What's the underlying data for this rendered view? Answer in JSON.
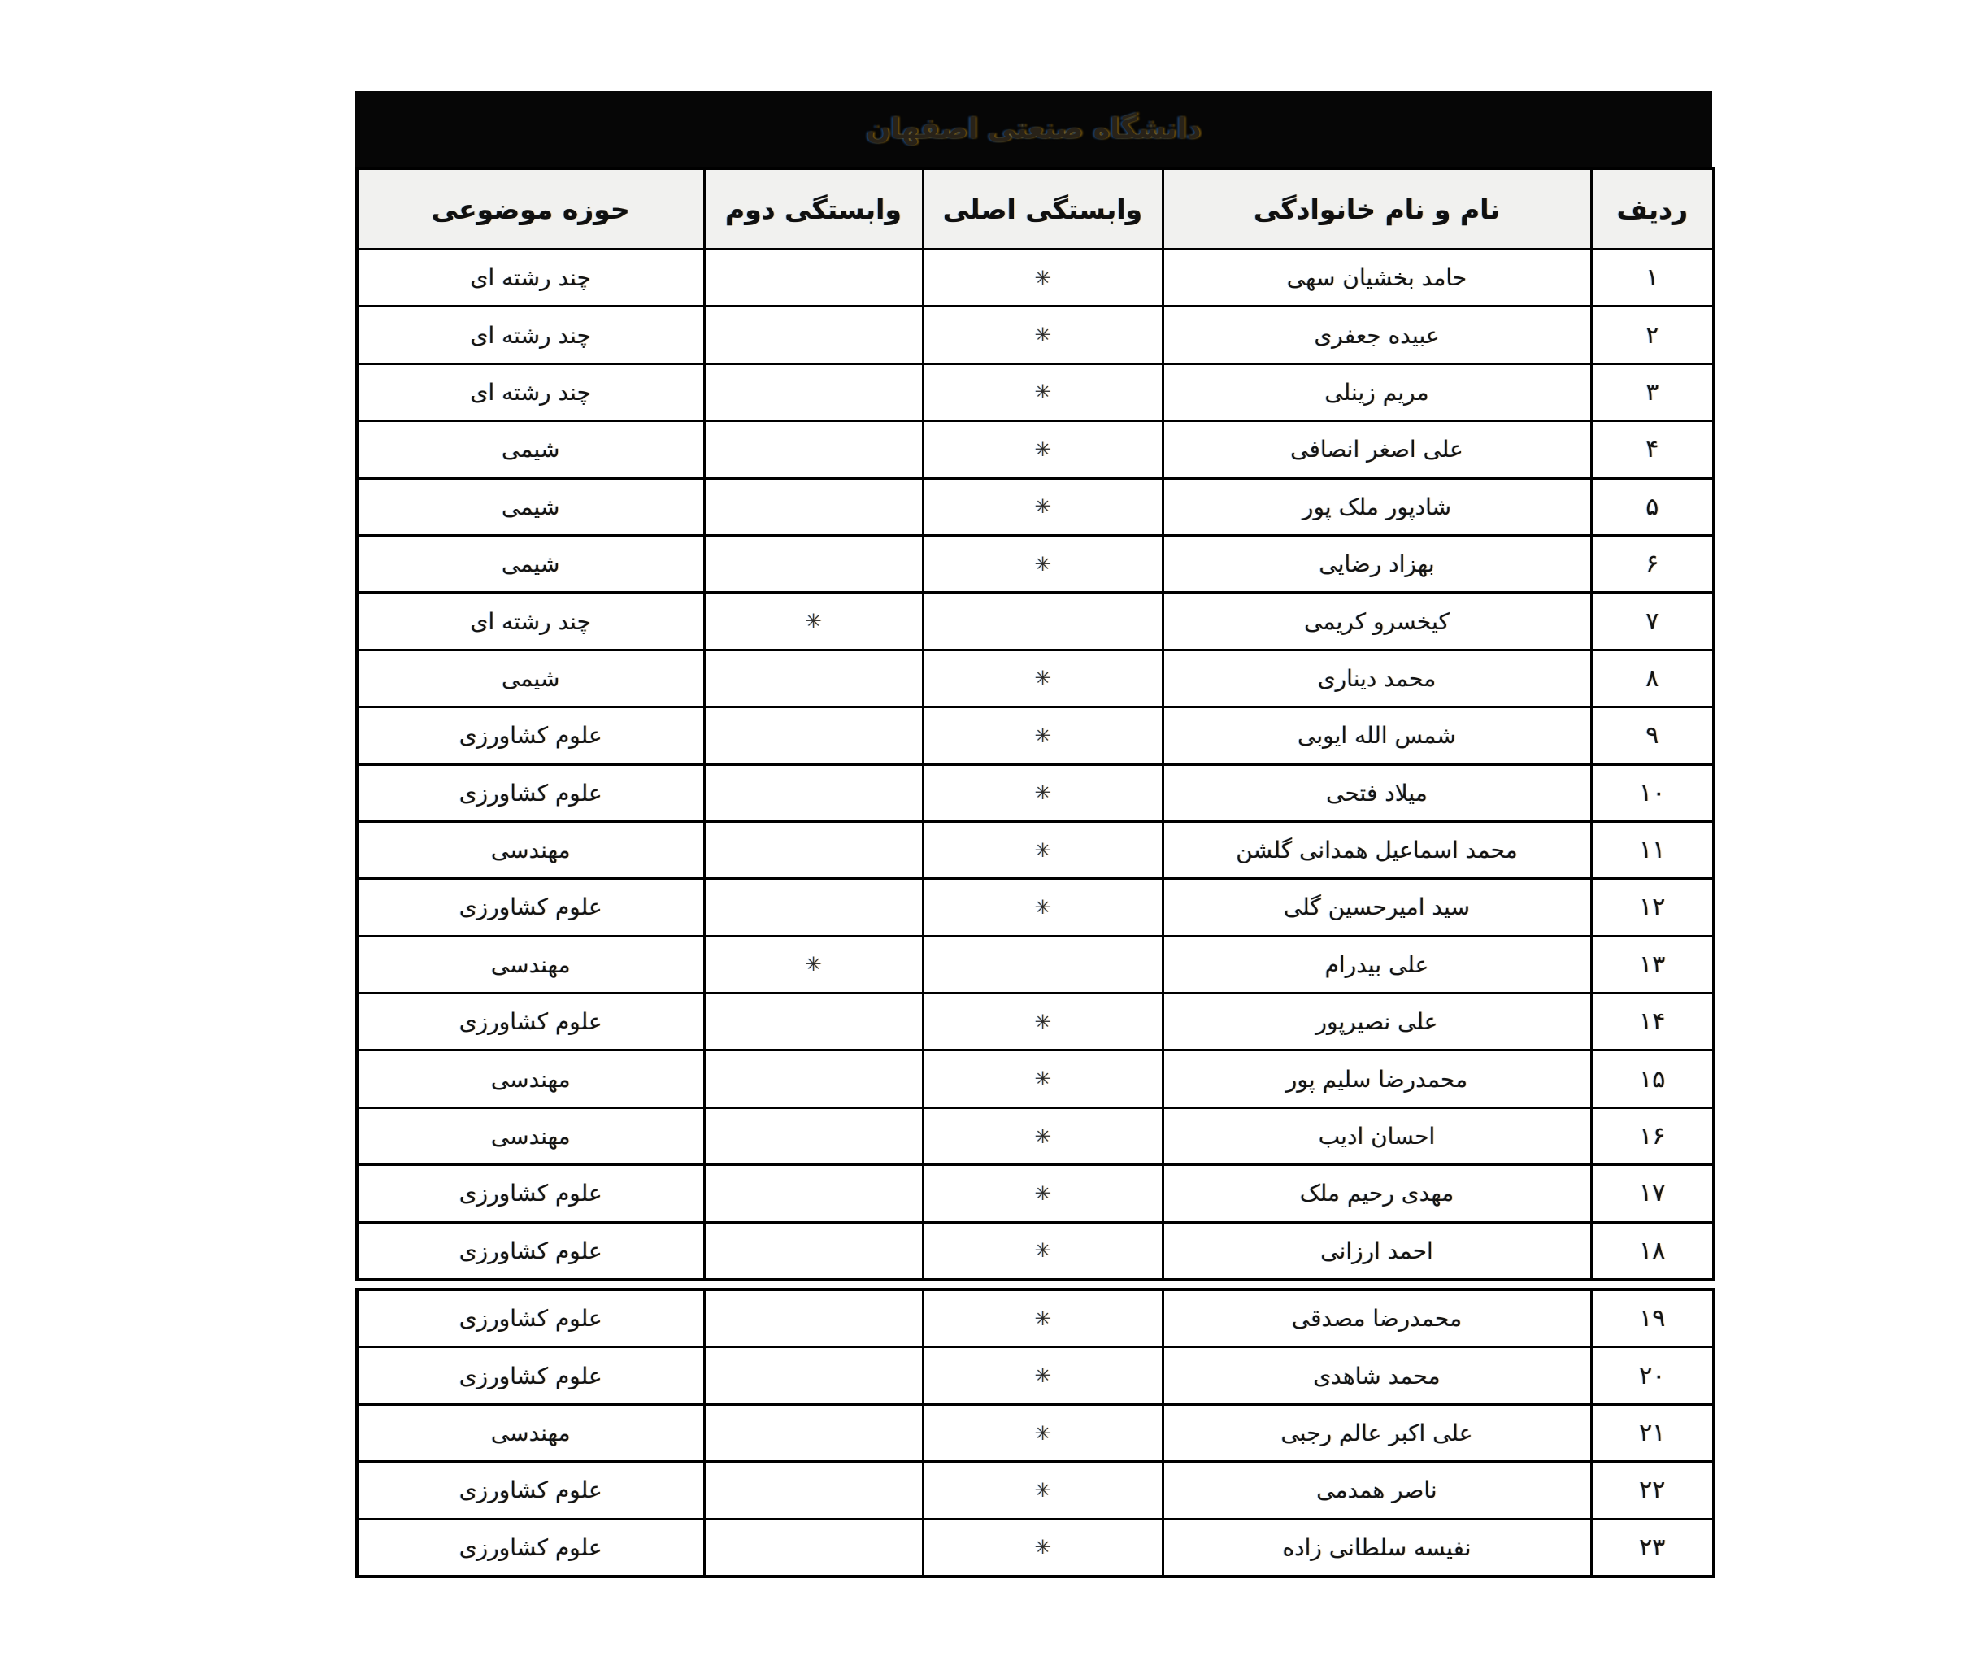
{
  "title": "دانشگاه صنعتی اصفهان",
  "table": {
    "asterisk": "✳",
    "headers": {
      "row_no": "ردیف",
      "name": "نام و نام خانوادگی",
      "primary_affiliation": "وابستگی اصلی",
      "secondary_affiliation": "وابستگی دوم",
      "subject_area": "حوزه موضوعی"
    },
    "rows": [
      {
        "no": "۱",
        "name": "حامد بخشیان سهی",
        "primary": true,
        "secondary": false,
        "subject": "چند رشته ای"
      },
      {
        "no": "۲",
        "name": "عبیده جعفری",
        "primary": true,
        "secondary": false,
        "subject": "چند رشته ای"
      },
      {
        "no": "۳",
        "name": "مریم زینلی",
        "primary": true,
        "secondary": false,
        "subject": "چند رشته ای"
      },
      {
        "no": "۴",
        "name": "علی اصغر انصافی",
        "primary": true,
        "secondary": false,
        "subject": "شیمی"
      },
      {
        "no": "۵",
        "name": "شادپور ملک پور",
        "primary": true,
        "secondary": false,
        "subject": "شیمی"
      },
      {
        "no": "۶",
        "name": "بهزاد رضایی",
        "primary": true,
        "secondary": false,
        "subject": "شیمی"
      },
      {
        "no": "۷",
        "name": "کیخسرو کریمی",
        "primary": false,
        "secondary": true,
        "subject": "چند رشته ای"
      },
      {
        "no": "۸",
        "name": "محمد دیناری",
        "primary": true,
        "secondary": false,
        "subject": "شیمی"
      },
      {
        "no": "۹",
        "name": "شمس الله ایوبی",
        "primary": true,
        "secondary": false,
        "subject": "علوم کشاورزی"
      },
      {
        "no": "۱۰",
        "name": "میلاد فتحی",
        "primary": true,
        "secondary": false,
        "subject": "علوم کشاورزی"
      },
      {
        "no": "۱۱",
        "name": "محمد اسماعیل همدانی گلشن",
        "primary": true,
        "secondary": false,
        "subject": "مهندسی"
      },
      {
        "no": "۱۲",
        "name": "سید امیرحسین گلی",
        "primary": true,
        "secondary": false,
        "subject": "علوم کشاورزی"
      },
      {
        "no": "۱۳",
        "name": "علی بیدرام",
        "primary": false,
        "secondary": true,
        "subject": "مهندسی"
      },
      {
        "no": "۱۴",
        "name": "علی نصیرپور",
        "primary": true,
        "secondary": false,
        "subject": "علوم کشاورزی"
      },
      {
        "no": "۱۵",
        "name": "محمدرضا سلیم پور",
        "primary": true,
        "secondary": false,
        "subject": "مهندسی"
      },
      {
        "no": "۱۶",
        "name": "احسان ادیب",
        "primary": true,
        "secondary": false,
        "subject": "مهندسی"
      },
      {
        "no": "۱۷",
        "name": "مهدی رحیم ملک",
        "primary": true,
        "secondary": false,
        "subject": "علوم کشاورزی"
      },
      {
        "no": "۱۸",
        "name": "احمد ارزانی",
        "primary": true,
        "secondary": false,
        "subject": "علوم کشاورزی"
      },
      {
        "no": "۱۹",
        "name": "محمدرضا مصدقی",
        "primary": true,
        "secondary": false,
        "subject": "علوم کشاورزی"
      },
      {
        "no": "۲۰",
        "name": "محمد شاهدی",
        "primary": true,
        "secondary": false,
        "subject": "علوم کشاورزی"
      },
      {
        "no": "۲۱",
        "name": "علی اکبر عالم رجبی",
        "primary": true,
        "secondary": false,
        "subject": "مهندسی"
      },
      {
        "no": "۲۲",
        "name": "ناصر همدمی",
        "primary": true,
        "secondary": false,
        "subject": "علوم کشاورزی"
      },
      {
        "no": "۲۳",
        "name": "نفیسه سلطانی زاده",
        "primary": true,
        "secondary": false,
        "subject": "علوم کشاورزی"
      }
    ]
  }
}
